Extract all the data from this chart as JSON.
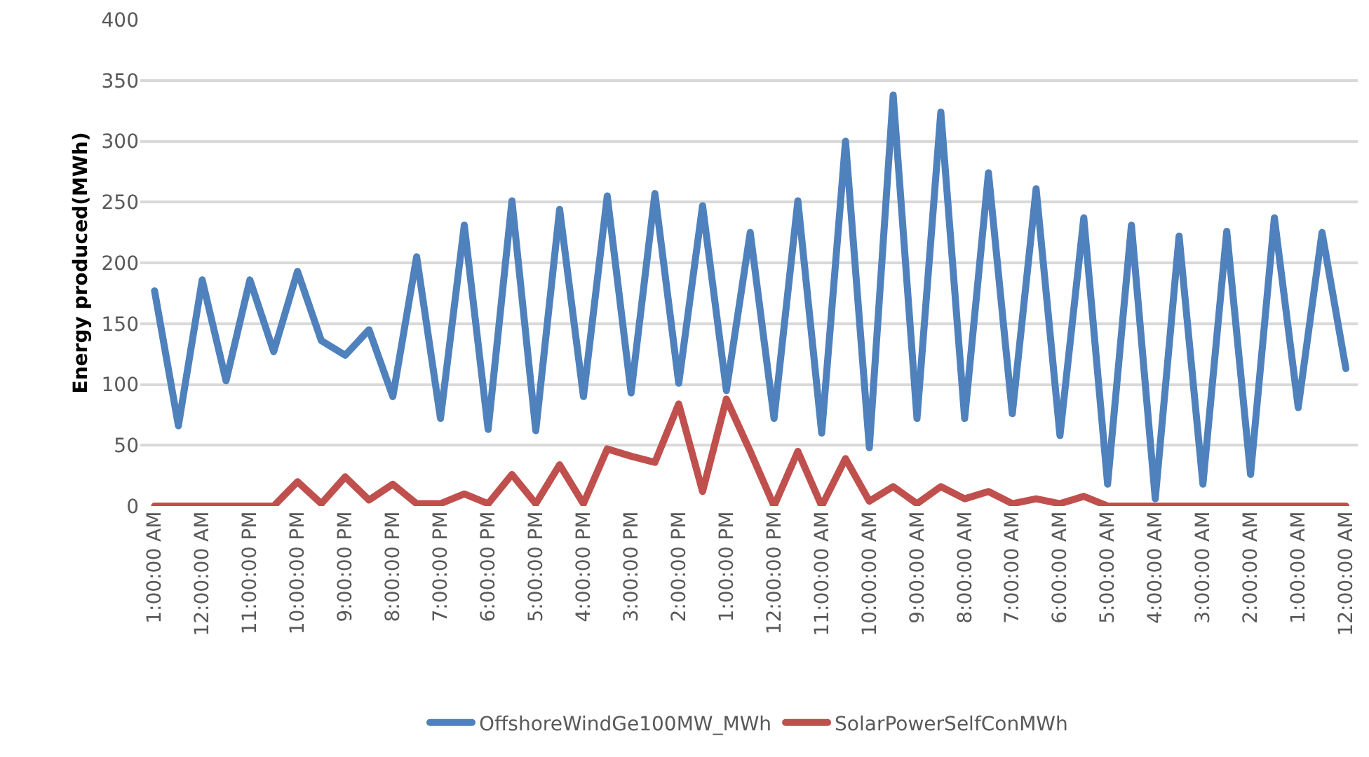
{
  "chart_data": {
    "type": "line",
    "ylabel": "Energy produced(MWh)",
    "categories": [
      "1:00:00 AM",
      null,
      "12:00:00 AM",
      null,
      "11:00:00 PM",
      null,
      "10:00:00 PM",
      null,
      "9:00:00 PM",
      null,
      "8:00:00 PM",
      null,
      "7:00:00 PM",
      null,
      "6:00:00 PM",
      null,
      "5:00:00 PM",
      null,
      "4:00:00 PM",
      null,
      "3:00:00 PM",
      null,
      "2:00:00 PM",
      null,
      "1:00:00 PM",
      null,
      "12:00:00 PM",
      null,
      "11:00:00 AM",
      null,
      "10:00:00 AM",
      null,
      "9:00:00 AM",
      null,
      "8:00:00 AM",
      null,
      "7:00:00 AM",
      null,
      "6:00:00 AM",
      null,
      "5:00:00 AM",
      null,
      "4:00:00 AM",
      null,
      "3:00:00 AM",
      null,
      "2:00:00 AM",
      null,
      "1:00:00 AM",
      null,
      "12:00:00 AM"
    ],
    "series": [
      {
        "name": "OffshoreWindGe100MW_MWh",
        "color": "#4f81bd",
        "values": [
          177,
          66,
          186,
          103,
          186,
          127,
          193,
          136,
          124,
          145,
          90,
          205,
          72,
          231,
          63,
          251,
          62,
          244,
          90,
          255,
          93,
          257,
          101,
          247,
          95,
          225,
          72,
          251,
          60,
          300,
          48,
          338,
          72,
          324,
          72,
          274,
          76,
          261,
          58,
          237,
          18,
          231,
          6,
          222,
          18,
          226,
          26,
          237,
          81,
          225,
          113
        ]
      },
      {
        "name": "SolarPowerSelfConMWh",
        "color": "#c0504d",
        "values": [
          0,
          0,
          0,
          0,
          0,
          0,
          20,
          2,
          24,
          5,
          18,
          2,
          2,
          10,
          2,
          26,
          2,
          34,
          2,
          47,
          41,
          36,
          84,
          12,
          88,
          45,
          0,
          45,
          0,
          39,
          4,
          16,
          2,
          16,
          6,
          12,
          2,
          6,
          2,
          8,
          0,
          0,
          0,
          0,
          0,
          0,
          0,
          0,
          0,
          0,
          0
        ]
      }
    ],
    "ylim": [
      0,
      400
    ],
    "yticks": [
      0,
      50,
      100,
      150,
      200,
      250,
      300,
      350,
      400
    ],
    "grid": "y",
    "legend": "bottom",
    "marker": "none",
    "line_style": "solid"
  }
}
